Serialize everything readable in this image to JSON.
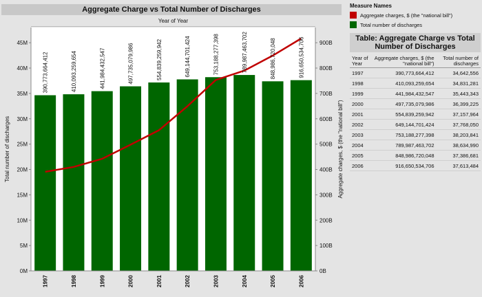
{
  "chart_title": "Aggregate Charge vs Total Number of Discharges",
  "column_header": "Year of Year",
  "legend": {
    "title": "Measure Names",
    "items": [
      {
        "label": "Aggregate charges, $ (the \"national bill\")",
        "color": "#c00000"
      },
      {
        "label": "Total number of discharges",
        "color": "#006600"
      }
    ]
  },
  "table": {
    "title": "Table: Aggregate Charge vs Total Number of Discharges",
    "headers": [
      "Year of Year",
      "Aggregate charges, $ (the \"national bill\")",
      "Total number of discharges"
    ],
    "rows": [
      [
        "1997",
        "390,773,664,412",
        "34,642,556"
      ],
      [
        "1998",
        "410,093,259,654",
        "34,831,281"
      ],
      [
        "1999",
        "441,984,432,547",
        "35,443,343"
      ],
      [
        "2000",
        "497,735,079,986",
        "36,399,225"
      ],
      [
        "2001",
        "554,839,259,942",
        "37,157,964"
      ],
      [
        "2002",
        "649,144,701,424",
        "37,768,050"
      ],
      [
        "2003",
        "753,188,277,398",
        "38,203,841"
      ],
      [
        "2004",
        "789,987,463,702",
        "38,634,990"
      ],
      [
        "2005",
        "848,986,720,048",
        "37,386,681"
      ],
      [
        "2006",
        "916,650,534,706",
        "37,613,484"
      ]
    ]
  },
  "chart_data": {
    "type": "bar",
    "title": "Aggregate Charge vs Total Number of Discharges",
    "xlabel": "Year of Year",
    "categories": [
      "1997",
      "1998",
      "1999",
      "2000",
      "2001",
      "2002",
      "2003",
      "2004",
      "2005",
      "2006"
    ],
    "series": [
      {
        "name": "Total number of discharges",
        "type": "bar",
        "axis": "left",
        "color": "#006600",
        "values": [
          34642556,
          34831281,
          35443343,
          36399225,
          37157964,
          37768050,
          38203841,
          38634990,
          37386681,
          37613484
        ]
      },
      {
        "name": "Aggregate charges, $ (the \"national bill\")",
        "type": "line",
        "axis": "right",
        "color": "#c00000",
        "values": [
          390773664412,
          410093259654,
          441984432547,
          497735079986,
          554839259942,
          649144701424,
          753188277398,
          789987463702,
          848986720048,
          916650534706
        ],
        "labels": [
          "390,773,664,412",
          "410,093,259,654",
          "441,984,432,547",
          "497,735,079,986",
          "554,839,259,942",
          "649,144,701,424",
          "753,188,277,398",
          "789,987,463,702",
          "848,986,720,048",
          "916,650,534,706"
        ]
      }
    ],
    "y_left": {
      "label": "Total number of discharges",
      "range": [
        0,
        48000000
      ],
      "ticks": [
        0,
        5000000,
        10000000,
        15000000,
        20000000,
        25000000,
        30000000,
        35000000,
        40000000,
        45000000
      ],
      "tick_labels": [
        "0M",
        "5M",
        "10M",
        "15M",
        "20M",
        "25M",
        "30M",
        "35M",
        "40M",
        "45M"
      ]
    },
    "y_right": {
      "label": "Aggregate charges, $ (the \"national bill\")",
      "range": [
        0,
        960000000000
      ],
      "ticks": [
        0,
        100000000000,
        200000000000,
        300000000000,
        400000000000,
        500000000000,
        600000000000,
        700000000000,
        800000000000,
        900000000000
      ],
      "tick_labels": [
        "0B",
        "100B",
        "200B",
        "300B",
        "400B",
        "500B",
        "600B",
        "700B",
        "800B",
        "900B"
      ]
    },
    "grid": false,
    "legend_position": "top-right"
  }
}
